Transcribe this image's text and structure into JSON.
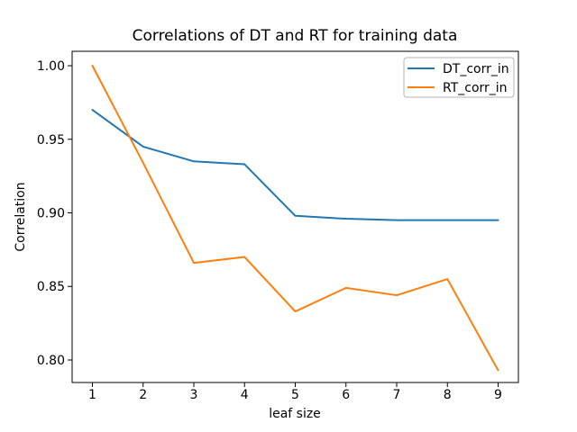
{
  "chart_data": {
    "type": "line",
    "title": "Correlations of DT and RT for training data",
    "xlabel": "leaf size",
    "ylabel": "Correlation",
    "x": [
      1,
      2,
      3,
      4,
      5,
      6,
      7,
      8,
      9
    ],
    "series": [
      {
        "name": "DT_corr_in",
        "color": "#1f77b4",
        "values": [
          0.97,
          0.945,
          0.935,
          0.933,
          0.898,
          0.896,
          0.895,
          0.895,
          0.895
        ]
      },
      {
        "name": "RT_corr_in",
        "color": "#ff7f0e",
        "values": [
          1.0,
          0.934,
          0.866,
          0.87,
          0.833,
          0.849,
          0.844,
          0.855,
          0.793
        ]
      }
    ],
    "xticks": {
      "values": [
        1,
        2,
        3,
        4,
        5,
        6,
        7,
        8,
        9
      ],
      "labels": [
        "1",
        "2",
        "3",
        "4",
        "5",
        "6",
        "7",
        "8",
        "9"
      ]
    },
    "yticks": {
      "values": [
        0.8,
        0.85,
        0.9,
        0.95,
        1.0
      ],
      "labels": [
        "0.80",
        "0.85",
        "0.90",
        "0.95",
        "1.00"
      ]
    },
    "xlim": [
      0.6,
      9.4
    ],
    "ylim": [
      0.7847,
      1.0098
    ],
    "grid": false,
    "legend": {
      "position": "upper right",
      "entries": [
        "DT_corr_in",
        "RT_corr_in"
      ]
    },
    "spine_color": "#000000",
    "background_color": "#ffffff"
  }
}
